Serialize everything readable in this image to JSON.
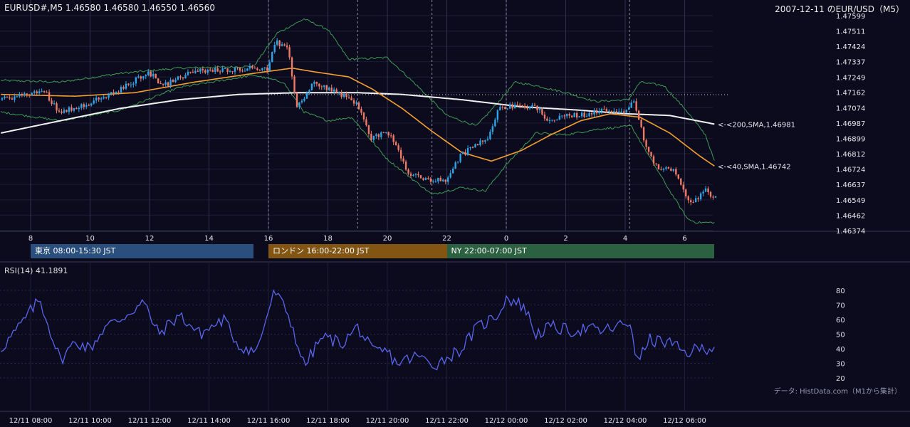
{
  "header": {
    "symbol_info": "EURUSD#,M5 1.46580 1.46580 1.46550 1.46560",
    "title_right": "2007-12-11 のEUR/USD（M5）"
  },
  "sessions": [
    {
      "label": "東京 08:00-15:30 JST",
      "color": "#2a4f7c",
      "start_hour": 8.0,
      "end_hour": 15.5
    },
    {
      "label": "ロンドン 16:00-22:00 JST",
      "color": "#835512",
      "start_hour": 16.0,
      "end_hour": 22.0
    },
    {
      "label": "NY 22:00-07:00 JST",
      "color": "#2b6141",
      "start_hour": 22.0,
      "end_hour": 31.0
    }
  ],
  "rsi_label": "RSI(14) 41.1891",
  "credit": "データ: HistData.com（M1から集計）",
  "chart_data": {
    "type": "candlestick",
    "time_range_hours": [
      7.0,
      31.0
    ],
    "price_axis": {
      "ylim": [
        1.46374,
        1.47599
      ],
      "ticks": [
        "1.47599",
        "1.47511",
        "1.47424",
        "1.47337",
        "1.47249",
        "1.47162",
        "1.47074",
        "1.46987",
        "1.46899",
        "1.46812",
        "1.46724",
        "1.46637",
        "1.46549",
        "1.46462",
        "1.46374"
      ]
    },
    "hour_axis": {
      "positions": [
        8,
        10,
        12,
        14,
        16,
        18,
        20,
        22,
        24,
        26,
        28,
        30
      ],
      "labels": [
        "8",
        "10",
        "12",
        "14",
        "16",
        "18",
        "20",
        "22",
        "0",
        "2",
        "4",
        "6"
      ]
    },
    "date_axis": {
      "positions": [
        8,
        10,
        12,
        14,
        16,
        18,
        20,
        22,
        24,
        26,
        28,
        30
      ],
      "labels": [
        "12/11 08:00",
        "12/11 10:00",
        "12/11 12:00",
        "12/11 14:00",
        "12/11 16:00",
        "12/11 18:00",
        "12/11 20:00",
        "12/11 22:00",
        "12/12 00:00",
        "12/12 02:00",
        "12/12 04:00",
        "12/12 06:00"
      ]
    },
    "price_path": [
      [
        7.0,
        1.4712
      ],
      [
        8.5,
        1.4717
      ],
      [
        9.0,
        1.4705
      ],
      [
        10.0,
        1.471
      ],
      [
        11.0,
        1.4717
      ],
      [
        12.0,
        1.4728
      ],
      [
        12.5,
        1.472
      ],
      [
        13.5,
        1.4728
      ],
      [
        15.5,
        1.473
      ],
      [
        16.0,
        1.473
      ],
      [
        16.3,
        1.4745
      ],
      [
        16.7,
        1.474
      ],
      [
        17.0,
        1.4708
      ],
      [
        17.6,
        1.4722
      ],
      [
        18.5,
        1.4715
      ],
      [
        19.0,
        1.471
      ],
      [
        19.5,
        1.469
      ],
      [
        20.0,
        1.4694
      ],
      [
        20.3,
        1.4688
      ],
      [
        20.7,
        1.467
      ],
      [
        21.5,
        1.4666
      ],
      [
        22.0,
        1.4666
      ],
      [
        22.5,
        1.468
      ],
      [
        23.0,
        1.4686
      ],
      [
        23.4,
        1.469
      ],
      [
        23.8,
        1.4708
      ],
      [
        24.5,
        1.4708
      ],
      [
        25.0,
        1.4708
      ],
      [
        25.5,
        1.47
      ],
      [
        26.0,
        1.4703
      ],
      [
        26.5,
        1.4703
      ],
      [
        27.0,
        1.4705
      ],
      [
        27.5,
        1.4706
      ],
      [
        28.1,
        1.4706
      ],
      [
        28.3,
        1.4712
      ],
      [
        28.5,
        1.47
      ],
      [
        28.8,
        1.4682
      ],
      [
        29.2,
        1.4672
      ],
      [
        29.7,
        1.4673
      ],
      [
        30.0,
        1.466
      ],
      [
        30.3,
        1.4652
      ],
      [
        30.7,
        1.4661
      ],
      [
        31.0,
        1.4656
      ]
    ],
    "levels": {
      "dotted_high": 1.47149,
      "dotted_high_end_hour": 31.5
    },
    "series": [
      {
        "name": "SMA 200",
        "label": "<-<200,SMA,1.46981",
        "last": 1.46981,
        "color": "#f2f2f2",
        "values": [
          [
            7.0,
            1.4693
          ],
          [
            9.0,
            1.47
          ],
          [
            11.0,
            1.4707
          ],
          [
            13.0,
            1.4712
          ],
          [
            15.0,
            1.4715
          ],
          [
            17.0,
            1.4716
          ],
          [
            19.0,
            1.4716
          ],
          [
            20.5,
            1.4715
          ],
          [
            22.5,
            1.4712
          ],
          [
            24.5,
            1.4708
          ],
          [
            26.5,
            1.4706
          ],
          [
            28.0,
            1.4704
          ],
          [
            29.5,
            1.4703
          ],
          [
            31.0,
            1.46981
          ]
        ]
      },
      {
        "name": "SMA 40",
        "label": "<-<40,SMA,1.46742",
        "last": 1.46742,
        "color": "#f5a030",
        "values": [
          [
            7.0,
            1.4715
          ],
          [
            9.5,
            1.4714
          ],
          [
            11.5,
            1.4716
          ],
          [
            13.5,
            1.4722
          ],
          [
            15.5,
            1.4727
          ],
          [
            16.8,
            1.473
          ],
          [
            17.5,
            1.4728
          ],
          [
            18.7,
            1.4725
          ],
          [
            19.5,
            1.4718
          ],
          [
            20.5,
            1.4707
          ],
          [
            21.5,
            1.4694
          ],
          [
            22.5,
            1.4682
          ],
          [
            23.5,
            1.4677
          ],
          [
            24.5,
            1.4683
          ],
          [
            25.5,
            1.4692
          ],
          [
            26.5,
            1.47
          ],
          [
            27.5,
            1.4704
          ],
          [
            28.5,
            1.4702
          ],
          [
            29.5,
            1.4693
          ],
          [
            30.5,
            1.468
          ],
          [
            31.0,
            1.46742
          ]
        ]
      },
      {
        "name": "BB upper",
        "color": "#3e9b55",
        "values": [
          [
            7.0,
            1.4723
          ],
          [
            9.0,
            1.4722
          ],
          [
            11.0,
            1.4727
          ],
          [
            13.0,
            1.473
          ],
          [
            15.5,
            1.4731
          ],
          [
            16.3,
            1.475
          ],
          [
            17.2,
            1.4758
          ],
          [
            18.0,
            1.4752
          ],
          [
            18.7,
            1.4735
          ],
          [
            20.0,
            1.4736
          ],
          [
            21.0,
            1.472
          ],
          [
            22.0,
            1.4703
          ],
          [
            23.0,
            1.4697
          ],
          [
            23.7,
            1.471
          ],
          [
            24.3,
            1.4722
          ],
          [
            25.0,
            1.472
          ],
          [
            26.0,
            1.4716
          ],
          [
            27.0,
            1.4711
          ],
          [
            28.1,
            1.4712
          ],
          [
            28.5,
            1.4722
          ],
          [
            29.3,
            1.472
          ],
          [
            30.0,
            1.4707
          ],
          [
            30.7,
            1.4692
          ],
          [
            31.0,
            1.4677
          ]
        ]
      },
      {
        "name": "BB lower",
        "color": "#3e9b55",
        "values": [
          [
            7.0,
            1.4705
          ],
          [
            9.0,
            1.47
          ],
          [
            11.0,
            1.4706
          ],
          [
            13.0,
            1.4719
          ],
          [
            15.5,
            1.4726
          ],
          [
            16.5,
            1.4722
          ],
          [
            17.2,
            1.4705
          ],
          [
            18.0,
            1.47
          ],
          [
            18.8,
            1.4702
          ],
          [
            20.0,
            1.4678
          ],
          [
            21.5,
            1.4658
          ],
          [
            22.5,
            1.4662
          ],
          [
            23.3,
            1.466
          ],
          [
            24.0,
            1.4675
          ],
          [
            25.0,
            1.4693
          ],
          [
            26.0,
            1.4692
          ],
          [
            27.0,
            1.4695
          ],
          [
            28.2,
            1.4697
          ],
          [
            28.8,
            1.468
          ],
          [
            29.5,
            1.466
          ],
          [
            30.1,
            1.4644
          ],
          [
            30.4,
            1.4642
          ],
          [
            31.0,
            1.4642
          ]
        ]
      }
    ],
    "rsi": {
      "name": "RSI(14)",
      "last": 41.1891,
      "color": "#5a64ee",
      "ylim": [
        15,
        85
      ],
      "ticks": [
        20,
        30,
        40,
        50,
        60,
        70,
        80
      ],
      "values": [
        [
          7.0,
          40
        ],
        [
          7.5,
          52
        ],
        [
          8.3,
          74
        ],
        [
          9.0,
          32
        ],
        [
          9.5,
          45
        ],
        [
          10.0,
          40
        ],
        [
          10.5,
          55
        ],
        [
          11.0,
          60
        ],
        [
          11.8,
          72
        ],
        [
          12.3,
          50
        ],
        [
          13.0,
          63
        ],
        [
          13.7,
          50
        ],
        [
          14.5,
          60
        ],
        [
          15.0,
          42
        ],
        [
          15.6,
          38
        ],
        [
          16.2,
          80
        ],
        [
          16.7,
          62
        ],
        [
          17.2,
          28
        ],
        [
          17.8,
          48
        ],
        [
          18.5,
          44
        ],
        [
          19.0,
          55
        ],
        [
          19.5,
          38
        ],
        [
          20.0,
          38
        ],
        [
          20.3,
          30
        ],
        [
          21.0,
          35
        ],
        [
          21.6,
          29
        ],
        [
          22.5,
          40
        ],
        [
          23.0,
          54
        ],
        [
          23.7,
          63
        ],
        [
          24.0,
          75
        ],
        [
          24.6,
          69
        ],
        [
          25.0,
          50
        ],
        [
          25.5,
          55
        ],
        [
          26.2,
          52
        ],
        [
          26.7,
          54
        ],
        [
          27.2,
          52
        ],
        [
          27.7,
          55
        ],
        [
          28.2,
          58
        ],
        [
          28.4,
          30
        ],
        [
          28.8,
          46
        ],
        [
          29.5,
          44
        ],
        [
          30.0,
          37
        ],
        [
          30.5,
          40
        ],
        [
          31.0,
          41.19
        ]
      ]
    }
  }
}
